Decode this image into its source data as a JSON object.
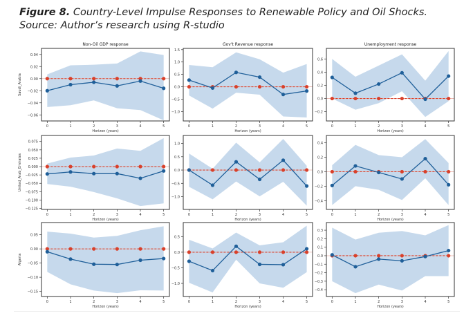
{
  "caption": {
    "label": "Figure 8.",
    "text": " Country-Level Impulse Responses to Renewable Policy and Oil Shocks.",
    "source": "Source: Author’s research using R-studio"
  },
  "colors": {
    "band": "#c6d9ec",
    "response": "#1f5f99",
    "baseline": "#d9402a",
    "axis": "#333333"
  },
  "chart_data": [
    {
      "type": "line",
      "row": 0,
      "col": 0,
      "title": "Non-Oil GDP response",
      "xlabel": "Horizon (years)",
      "ylabel": "Saudi_Arabia",
      "x": [
        0,
        1,
        2,
        3,
        4,
        5
      ],
      "ylim": [
        -0.07,
        0.05
      ],
      "yticks": [
        0.04,
        0.02,
        0.0,
        -0.02,
        -0.04,
        -0.06
      ],
      "ytick_labels": [
        "0.04",
        "0.02",
        "0.00",
        "−0.02",
        "−0.04",
        "−0.06"
      ],
      "series": [
        {
          "name": "response",
          "values": [
            -0.02,
            -0.01,
            -0.006,
            -0.012,
            -0.004,
            -0.016
          ]
        },
        {
          "name": "upper",
          "values": [
            0.007,
            0.022,
            0.023,
            0.025,
            0.045,
            0.039
          ]
        },
        {
          "name": "lower",
          "values": [
            -0.047,
            -0.044,
            -0.036,
            -0.049,
            -0.052,
            -0.069
          ]
        },
        {
          "name": "zero",
          "values": [
            0,
            0,
            0,
            0,
            0,
            0
          ]
        }
      ]
    },
    {
      "type": "line",
      "row": 0,
      "col": 1,
      "title": "Gov't Revenue response",
      "xlabel": "Horizon (years)",
      "ylabel": "",
      "x": [
        0,
        1,
        2,
        3,
        4,
        5
      ],
      "ylim": [
        -1.38,
        1.55
      ],
      "yticks": [
        1.5,
        1.0,
        0.5,
        0.0,
        -0.5,
        -1.0
      ],
      "ytick_labels": [
        "1.5",
        "1.0",
        "0.5",
        "0.0",
        "−0.5",
        "−1.0"
      ],
      "series": [
        {
          "name": "response",
          "values": [
            0.27,
            -0.05,
            0.58,
            0.39,
            -0.31,
            -0.17
          ]
        },
        {
          "name": "upper",
          "values": [
            0.88,
            0.79,
            1.39,
            1.11,
            0.57,
            0.92
          ]
        },
        {
          "name": "lower",
          "values": [
            -0.35,
            -0.88,
            -0.24,
            -0.32,
            -1.2,
            -1.24
          ]
        },
        {
          "name": "zero",
          "values": [
            0,
            0,
            0,
            0,
            0,
            0
          ]
        }
      ]
    },
    {
      "type": "line",
      "row": 0,
      "col": 2,
      "title": "Unemployment response",
      "xlabel": "Horizon (years)",
      "ylabel": "",
      "x": [
        0,
        1,
        2,
        3,
        4,
        5
      ],
      "ylim": [
        -0.34,
        0.76
      ],
      "yticks": [
        0.6,
        0.4,
        0.2,
        0.0,
        -0.2
      ],
      "ytick_labels": [
        "0.6",
        "0.4",
        "0.2",
        "0.0",
        "−0.2"
      ],
      "series": [
        {
          "name": "response",
          "values": [
            0.32,
            0.08,
            0.22,
            0.39,
            -0.01,
            0.34
          ]
        },
        {
          "name": "upper",
          "values": [
            0.6,
            0.33,
            0.5,
            0.67,
            0.27,
            0.72
          ]
        },
        {
          "name": "lower",
          "values": [
            0.0,
            -0.17,
            -0.07,
            0.11,
            -0.28,
            -0.04
          ]
        },
        {
          "name": "zero",
          "values": [
            0,
            0,
            0,
            0,
            0,
            0
          ]
        }
      ]
    },
    {
      "type": "line",
      "row": 1,
      "col": 0,
      "title": "",
      "xlabel": "Horizon (years)",
      "ylabel": "United_Arab_Emirates",
      "x": [
        0,
        1,
        2,
        3,
        4,
        5
      ],
      "ylim": [
        -0.128,
        0.093
      ],
      "yticks": [
        0.075,
        0.05,
        0.025,
        0.0,
        -0.025,
        -0.05,
        -0.075,
        -0.1,
        -0.125
      ],
      "ytick_labels": [
        "0.075",
        "0.050",
        "0.025",
        "0.000",
        "−0.025",
        "−0.050",
        "−0.075",
        "−0.100",
        "−0.125"
      ],
      "series": [
        {
          "name": "response",
          "values": [
            -0.022,
            -0.016,
            -0.021,
            -0.021,
            -0.035,
            -0.013
          ]
        },
        {
          "name": "upper",
          "values": [
            0.009,
            0.027,
            0.033,
            0.054,
            0.047,
            0.085
          ]
        },
        {
          "name": "lower",
          "values": [
            -0.052,
            -0.06,
            -0.076,
            -0.095,
            -0.118,
            -0.11
          ]
        },
        {
          "name": "zero",
          "values": [
            0,
            0,
            0,
            0,
            0,
            0
          ]
        }
      ]
    },
    {
      "type": "line",
      "row": 1,
      "col": 1,
      "title": "",
      "xlabel": "Horizon (years)",
      "ylabel": "",
      "x": [
        0,
        1,
        2,
        3,
        4,
        5
      ],
      "ylim": [
        -1.48,
        1.3
      ],
      "yticks": [
        1.0,
        0.5,
        0.0,
        -0.5,
        -1.0
      ],
      "ytick_labels": [
        "1.0",
        "0.5",
        "0.0",
        "−0.5",
        "−1.0"
      ],
      "series": [
        {
          "name": "response",
          "values": [
            0.0,
            -0.57,
            0.31,
            -0.35,
            0.37,
            -0.6
          ]
        },
        {
          "name": "upper",
          "values": [
            0.62,
            0.05,
            1.03,
            0.29,
            1.17,
            0.16
          ]
        },
        {
          "name": "lower",
          "values": [
            -0.63,
            -1.1,
            -0.43,
            -0.99,
            -0.44,
            -1.34
          ]
        },
        {
          "name": "zero",
          "values": [
            0,
            0,
            0,
            0,
            0,
            0
          ]
        }
      ]
    },
    {
      "type": "line",
      "row": 1,
      "col": 2,
      "title": "",
      "xlabel": "Horizon (years)",
      "ylabel": "",
      "x": [
        0,
        1,
        2,
        3,
        4,
        5
      ],
      "ylim": [
        -0.52,
        0.5
      ],
      "yticks": [
        0.4,
        0.2,
        0.0,
        -0.2,
        -0.4
      ],
      "ytick_labels": [
        "0.4",
        "0.2",
        "0.0",
        "−0.2",
        "−0.4"
      ],
      "series": [
        {
          "name": "response",
          "values": [
            -0.19,
            0.08,
            -0.01,
            -0.1,
            0.18,
            -0.18
          ]
        },
        {
          "name": "upper",
          "values": [
            0.09,
            0.37,
            0.23,
            0.2,
            0.45,
            0.12
          ]
        },
        {
          "name": "lower",
          "values": [
            -0.46,
            -0.2,
            -0.25,
            -0.39,
            -0.09,
            -0.46
          ]
        },
        {
          "name": "zero",
          "values": [
            0,
            0,
            0,
            0,
            0,
            0
          ]
        }
      ]
    },
    {
      "type": "line",
      "row": 2,
      "col": 0,
      "title": "",
      "xlabel": "Horizon (years)",
      "ylabel": "Algeria",
      "x": [
        0,
        1,
        2,
        3,
        4,
        5
      ],
      "ylim": [
        -0.168,
        0.093
      ],
      "yticks": [
        0.05,
        0.0,
        -0.05,
        -0.1,
        -0.15
      ],
      "ytick_labels": [
        "0.05",
        "0.00",
        "−0.05",
        "−0.10",
        "−0.15"
      ],
      "series": [
        {
          "name": "response",
          "values": [
            -0.01,
            -0.036,
            -0.054,
            -0.055,
            -0.04,
            -0.034
          ]
        },
        {
          "name": "upper",
          "values": [
            0.061,
            0.054,
            0.04,
            0.046,
            0.066,
            0.08
          ]
        },
        {
          "name": "lower",
          "values": [
            -0.081,
            -0.125,
            -0.147,
            -0.156,
            -0.146,
            -0.147
          ]
        },
        {
          "name": "zero",
          "values": [
            0,
            0,
            0,
            0,
            0,
            0
          ]
        }
      ]
    },
    {
      "type": "line",
      "row": 2,
      "col": 1,
      "title": "",
      "xlabel": "Horizon (years)",
      "ylabel": "",
      "x": [
        0,
        1,
        2,
        3,
        4,
        5
      ],
      "ylim": [
        -1.42,
        0.95
      ],
      "yticks": [
        0.5,
        0.0,
        -0.5,
        -1.0
      ],
      "ytick_labels": [
        "0.5",
        "0.0",
        "−0.5",
        "−1.0"
      ],
      "series": [
        {
          "name": "response",
          "values": [
            -0.29,
            -0.59,
            0.19,
            -0.39,
            -0.4,
            0.11
          ]
        },
        {
          "name": "upper",
          "values": [
            0.4,
            0.12,
            0.63,
            0.22,
            0.32,
            0.85
          ]
        },
        {
          "name": "lower",
          "values": [
            -0.98,
            -1.29,
            -0.24,
            -1.0,
            -1.14,
            -0.64
          ]
        },
        {
          "name": "zero",
          "values": [
            0,
            0,
            0,
            0,
            0,
            0
          ]
        }
      ]
    },
    {
      "type": "line",
      "row": 2,
      "col": 2,
      "title": "",
      "xlabel": "Horizon (years)",
      "ylabel": "",
      "x": [
        0,
        1,
        2,
        3,
        4,
        5
      ],
      "ylim": [
        -0.48,
        0.39
      ],
      "yticks": [
        0.3,
        0.2,
        0.1,
        0.0,
        -0.1,
        -0.2,
        -0.3,
        -0.4
      ],
      "ytick_labels": [
        "0.3",
        "0.2",
        "0.1",
        "0.0",
        "−0.1",
        "−0.2",
        "−0.3",
        "−0.4"
      ],
      "series": [
        {
          "name": "response",
          "values": [
            0.01,
            -0.13,
            -0.04,
            -0.06,
            -0.01,
            0.06
          ]
        },
        {
          "name": "upper",
          "values": [
            0.33,
            0.19,
            0.27,
            0.29,
            0.24,
            0.36
          ]
        },
        {
          "name": "lower",
          "values": [
            -0.3,
            -0.44,
            -0.34,
            -0.41,
            -0.24,
            -0.24
          ]
        },
        {
          "name": "zero",
          "values": [
            0,
            0,
            0,
            0,
            0,
            0
          ]
        }
      ]
    }
  ]
}
